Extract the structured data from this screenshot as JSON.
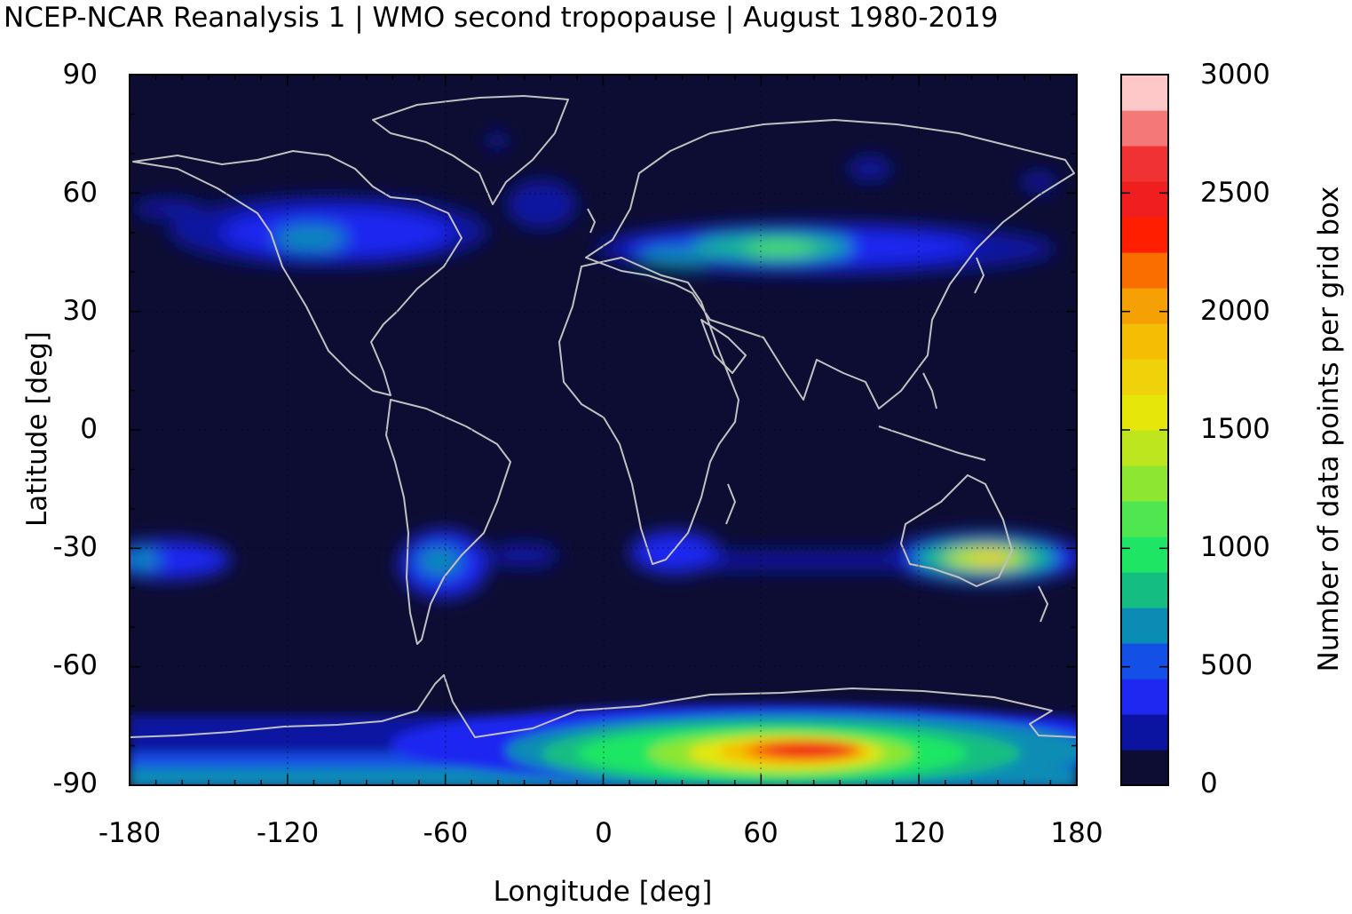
{
  "title": "NCEP-NCAR Reanalysis 1 | WMO second tropopause | August 1980-2019",
  "map": {
    "xlabel": "Longitude [deg]",
    "ylabel": "Latitude [deg]",
    "xlim": [
      -180,
      180
    ],
    "ylim": [
      -90,
      90
    ],
    "x_ticks": [
      "-180",
      "-120",
      "-60",
      "0",
      "60",
      "120",
      "180"
    ],
    "y_ticks": [
      "90",
      "60",
      "30",
      "0",
      "-30",
      "-60",
      "-90"
    ],
    "background_color": "#0d0d33",
    "coastline_color": "#c0c0c0",
    "grid": "dotted"
  },
  "colorbar": {
    "label": "Number of data points per grid box",
    "range": [
      0,
      3000
    ],
    "tick_labels": [
      "3000",
      "2500",
      "2000",
      "1500",
      "1000",
      "500",
      "0"
    ],
    "step": 150,
    "colors": [
      "#0d0d33",
      "#0a14a0",
      "#1e28f0",
      "#1450e6",
      "#0a8cb4",
      "#14be82",
      "#1ee664",
      "#50e650",
      "#8ce632",
      "#bee61e",
      "#e6e60a",
      "#f0d20a",
      "#f5be05",
      "#f5a005",
      "#fa6e00",
      "#ff1e00",
      "#f01e1e",
      "#f03232",
      "#f57878",
      "#ffc8c8"
    ]
  },
  "chart_data": {
    "type": "heatmap",
    "x_variable": "Longitude [deg]",
    "y_variable": "Latitude [deg]",
    "value_variable": "Number of data points per grid box",
    "xlim": [
      -180,
      180
    ],
    "ylim": [
      -90,
      90
    ],
    "value_range": [
      0,
      3000
    ],
    "features": [
      {
        "lon_range": [
          -180,
          180
        ],
        "lat_range": [
          -90,
          -72
        ],
        "approx_peak_value": 2700,
        "peak_at": [
          75,
          -81
        ]
      },
      {
        "lon_range": [
          0,
          180
        ],
        "lat_range": [
          38,
          55
        ],
        "approx_peak_value": 1000,
        "peak_at": [
          70,
          46
        ]
      },
      {
        "lon_range": [
          -140,
          -50
        ],
        "lat_range": [
          40,
          62
        ],
        "approx_peak_value": 700,
        "peak_at": [
          -120,
          48
        ]
      },
      {
        "lon_range": [
          110,
          180
        ],
        "lat_range": [
          -40,
          -25
        ],
        "approx_peak_value": 1800,
        "peak_at": [
          145,
          -33
        ]
      },
      {
        "lon_range": [
          -80,
          -20
        ],
        "lat_range": [
          -40,
          -25
        ],
        "approx_peak_value": 600,
        "peak_at": [
          -60,
          -33
        ]
      },
      {
        "lon_range": [
          10,
          60
        ],
        "lat_range": [
          -40,
          -25
        ],
        "approx_peak_value": 500,
        "peak_at": [
          25,
          -30
        ]
      },
      {
        "lon_range": [
          -180,
          -150
        ],
        "lat_range": [
          -40,
          -25
        ],
        "approx_peak_value": 600,
        "peak_at": [
          -175,
          -33
        ]
      }
    ]
  }
}
